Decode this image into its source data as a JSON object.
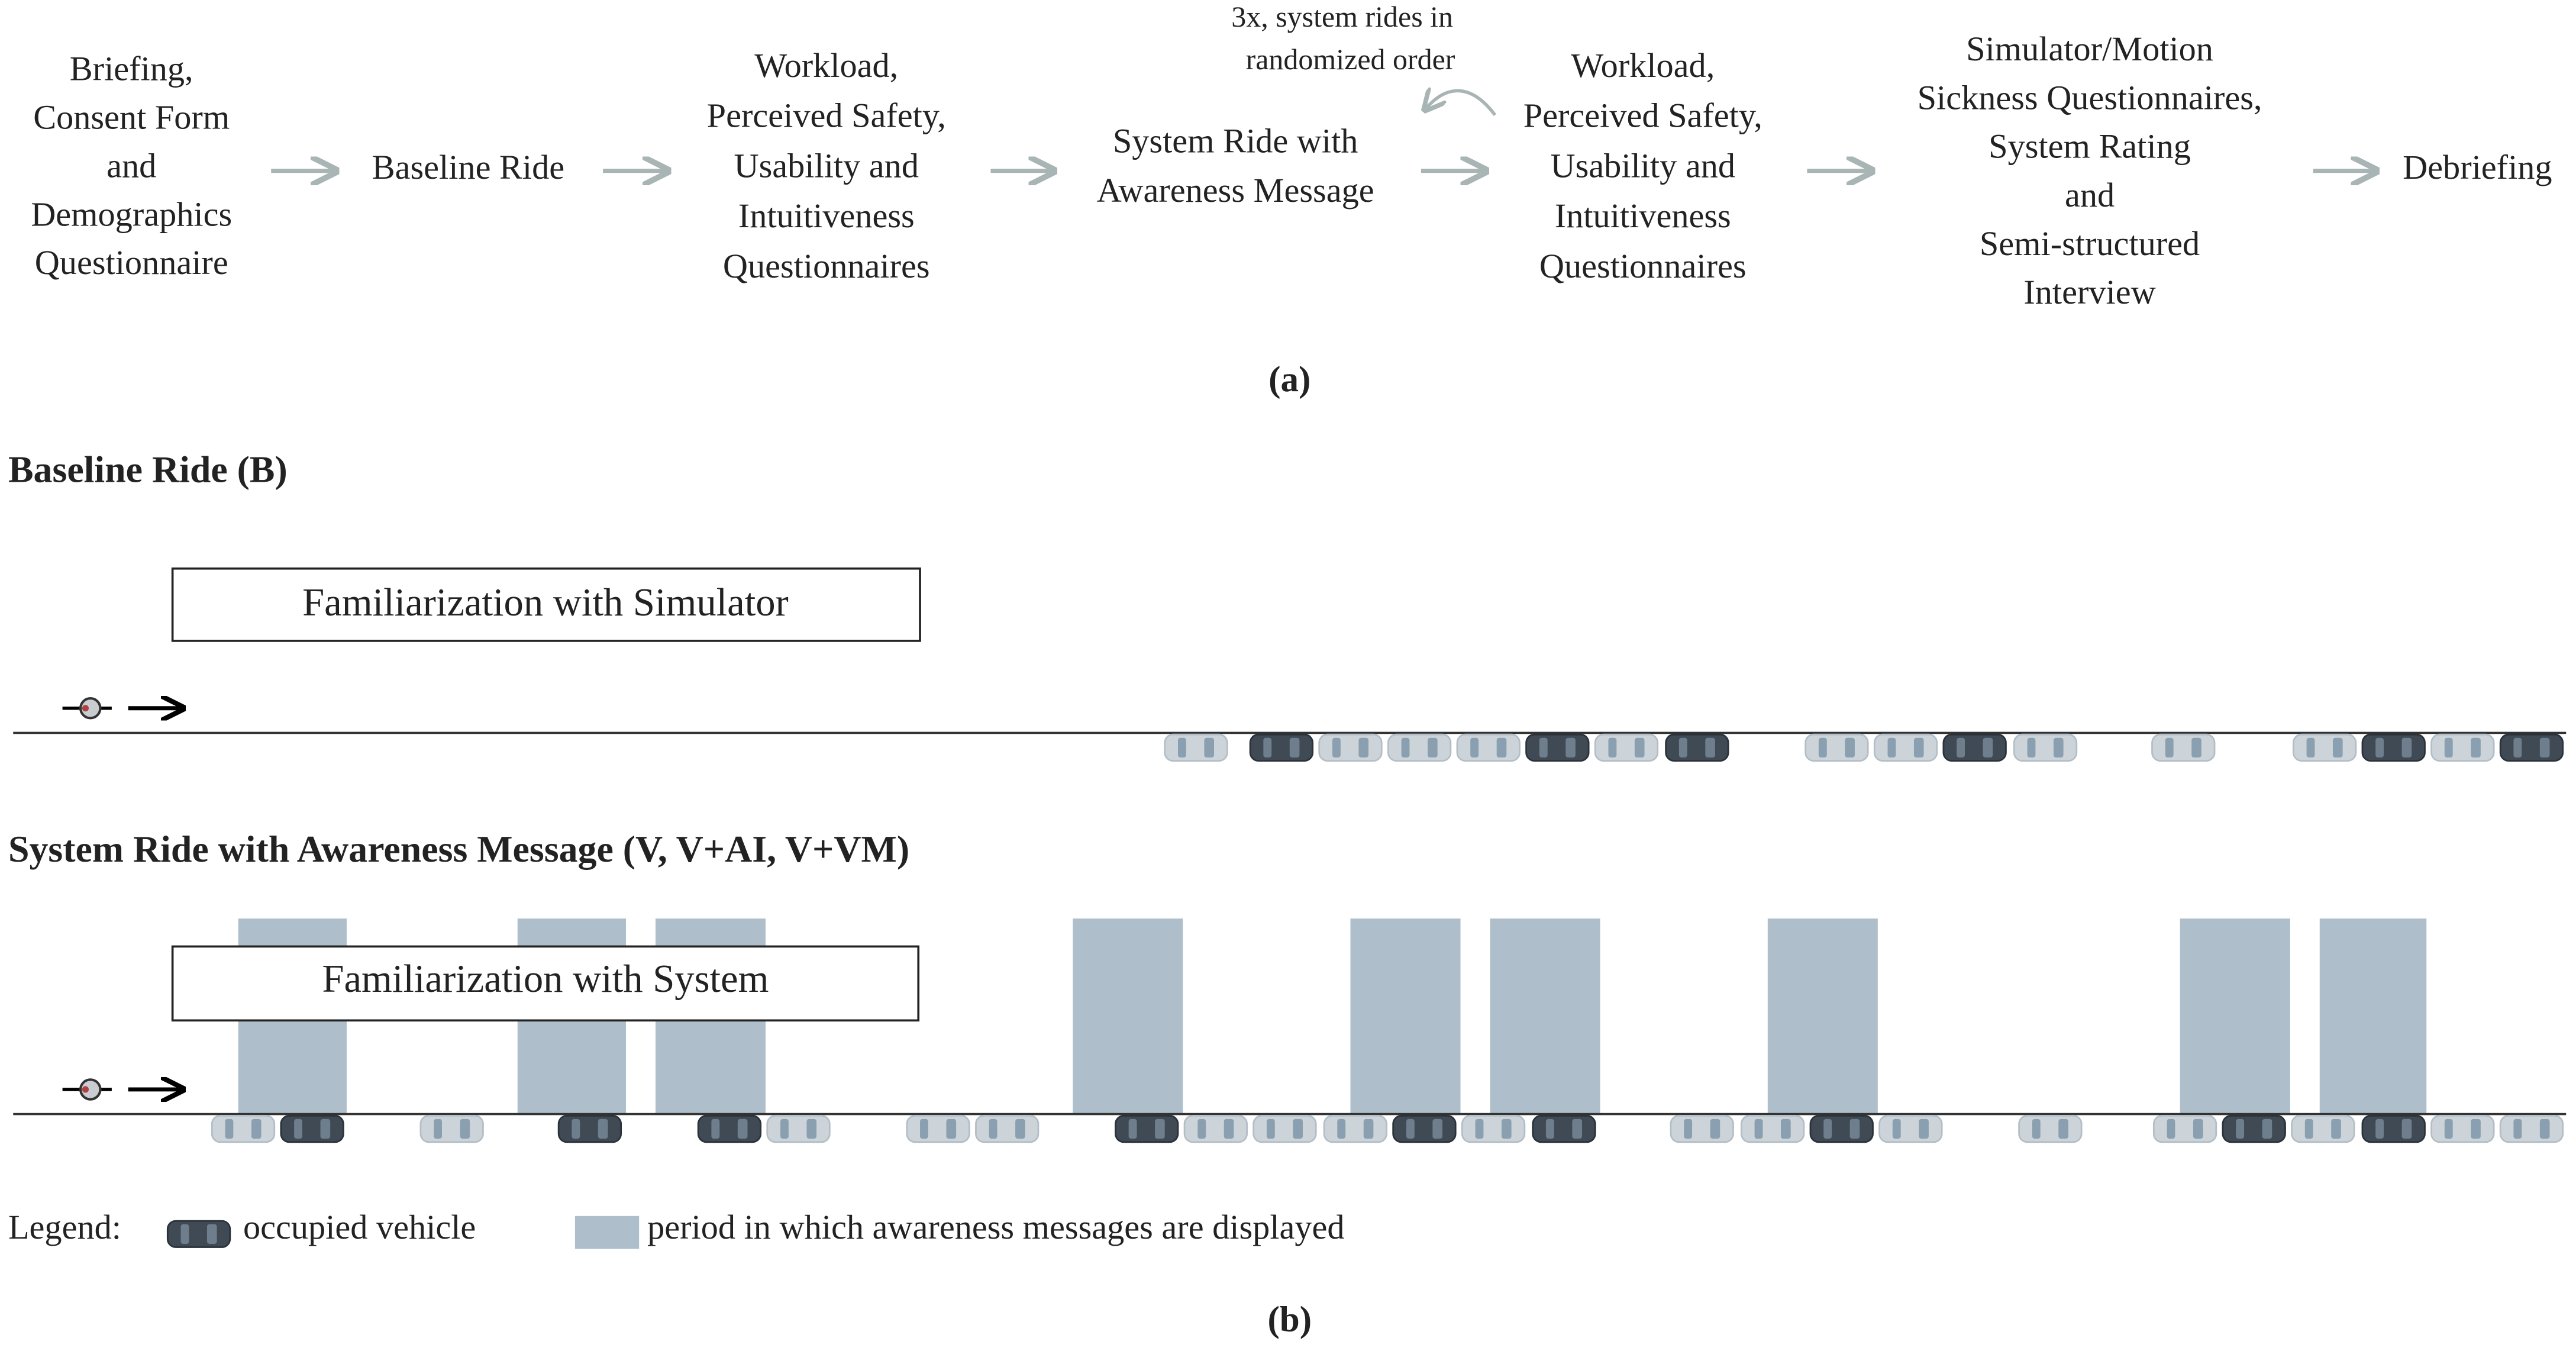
{
  "flow": {
    "steps": [
      {
        "lines": [
          "Briefing,",
          "Consent Form",
          "and",
          "Demographics",
          "Questionnaire"
        ]
      },
      {
        "lines": [
          "Baseline Ride"
        ]
      },
      {
        "lines": [
          "Workload,",
          "Perceived Safety,",
          "Usability and",
          "Intuitiveness",
          "Questionnaires"
        ]
      },
      {
        "lines": [
          "System Ride with",
          "Awareness Message"
        ]
      },
      {
        "lines": [
          "Workload,",
          "Perceived Safety,",
          "Usability and",
          "Intuitiveness",
          "Questionnaires"
        ]
      },
      {
        "lines": [
          "Simulator/Motion",
          "Sickness Questionnaires,",
          "System Rating",
          "and",
          "Semi-structured",
          "Interview"
        ]
      },
      {
        "lines": [
          "Debriefing"
        ]
      }
    ],
    "loop_note": [
      "3x, system rides in",
      "randomized order"
    ],
    "caption": "(a)"
  },
  "timeline": {
    "baseline": {
      "title": "Baseline Ride (B)",
      "box": "Familiarization with Simulator"
    },
    "system": {
      "title": "System Ride with Awareness Message (V, V+AI, V+VM)",
      "box": "Familiarization with System"
    },
    "legend": {
      "label": "Legend:",
      "occupied": "occupied vehicle",
      "period": "period in which awareness messages are displayed"
    },
    "caption": "(b)"
  }
}
